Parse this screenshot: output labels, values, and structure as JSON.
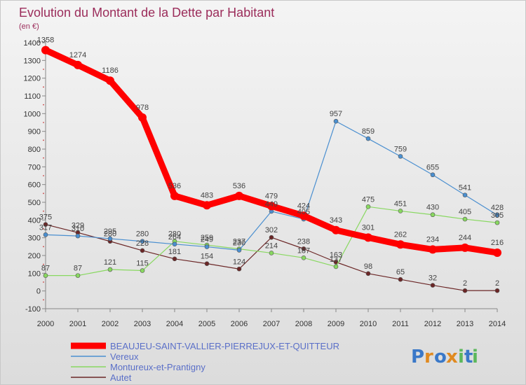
{
  "chart_data": {
    "type": "line",
    "title": "Evolution du Montant de la Dette par Habitant",
    "subtitle": "(en €)",
    "xlabel": "",
    "ylabel": "",
    "ylim": [
      -100,
      1400
    ],
    "yticks": [
      -100,
      0,
      100,
      200,
      300,
      400,
      500,
      600,
      700,
      800,
      900,
      1000,
      1100,
      1200,
      1300,
      1400
    ],
    "categories": [
      "2000",
      "2001",
      "2002",
      "2003",
      "2004",
      "2005",
      "2006",
      "2007",
      "2008",
      "2009",
      "2010",
      "2011",
      "2012",
      "2013",
      "2014"
    ],
    "grid": false,
    "legend_position": "bottom-left",
    "series": [
      {
        "name": "BEAUJEU-SAINT-VALLIER-PIERREJUX-ET-QUITTEUR",
        "color": "#ff0000",
        "values": [
          1358,
          1274,
          1186,
          978,
          536,
          483,
          536,
          479,
          424,
          343,
          301,
          262,
          234,
          244,
          216
        ]
      },
      {
        "name": "Vereux",
        "color": "#4a8fd0",
        "values": [
          317,
          310,
          295,
          280,
          264,
          249,
          230,
          449,
          405,
          957,
          859,
          759,
          655,
          541,
          428
        ]
      },
      {
        "name": "Montureux-et-Prantigny",
        "color": "#88d860",
        "values": [
          87,
          87,
          121,
          115,
          280,
          259,
          237,
          214,
          187,
          137,
          475,
          451,
          430,
          405,
          385
        ]
      },
      {
        "name": "Autet",
        "color": "#6b2626",
        "values": [
          375,
          329,
          280,
          228,
          181,
          154,
          124,
          302,
          238,
          163,
          98,
          65,
          32,
          2,
          2
        ]
      }
    ]
  },
  "brand": {
    "name": "Proxiti",
    "letters": [
      "P",
      "r",
      "o",
      "x",
      "i",
      "t",
      "i"
    ],
    "letter_colors": [
      "#3a78c8",
      "#e08a20",
      "#3a78c8",
      "#e08a20",
      "#5cb85c",
      "#3a78c8",
      "#5cb85c"
    ]
  }
}
